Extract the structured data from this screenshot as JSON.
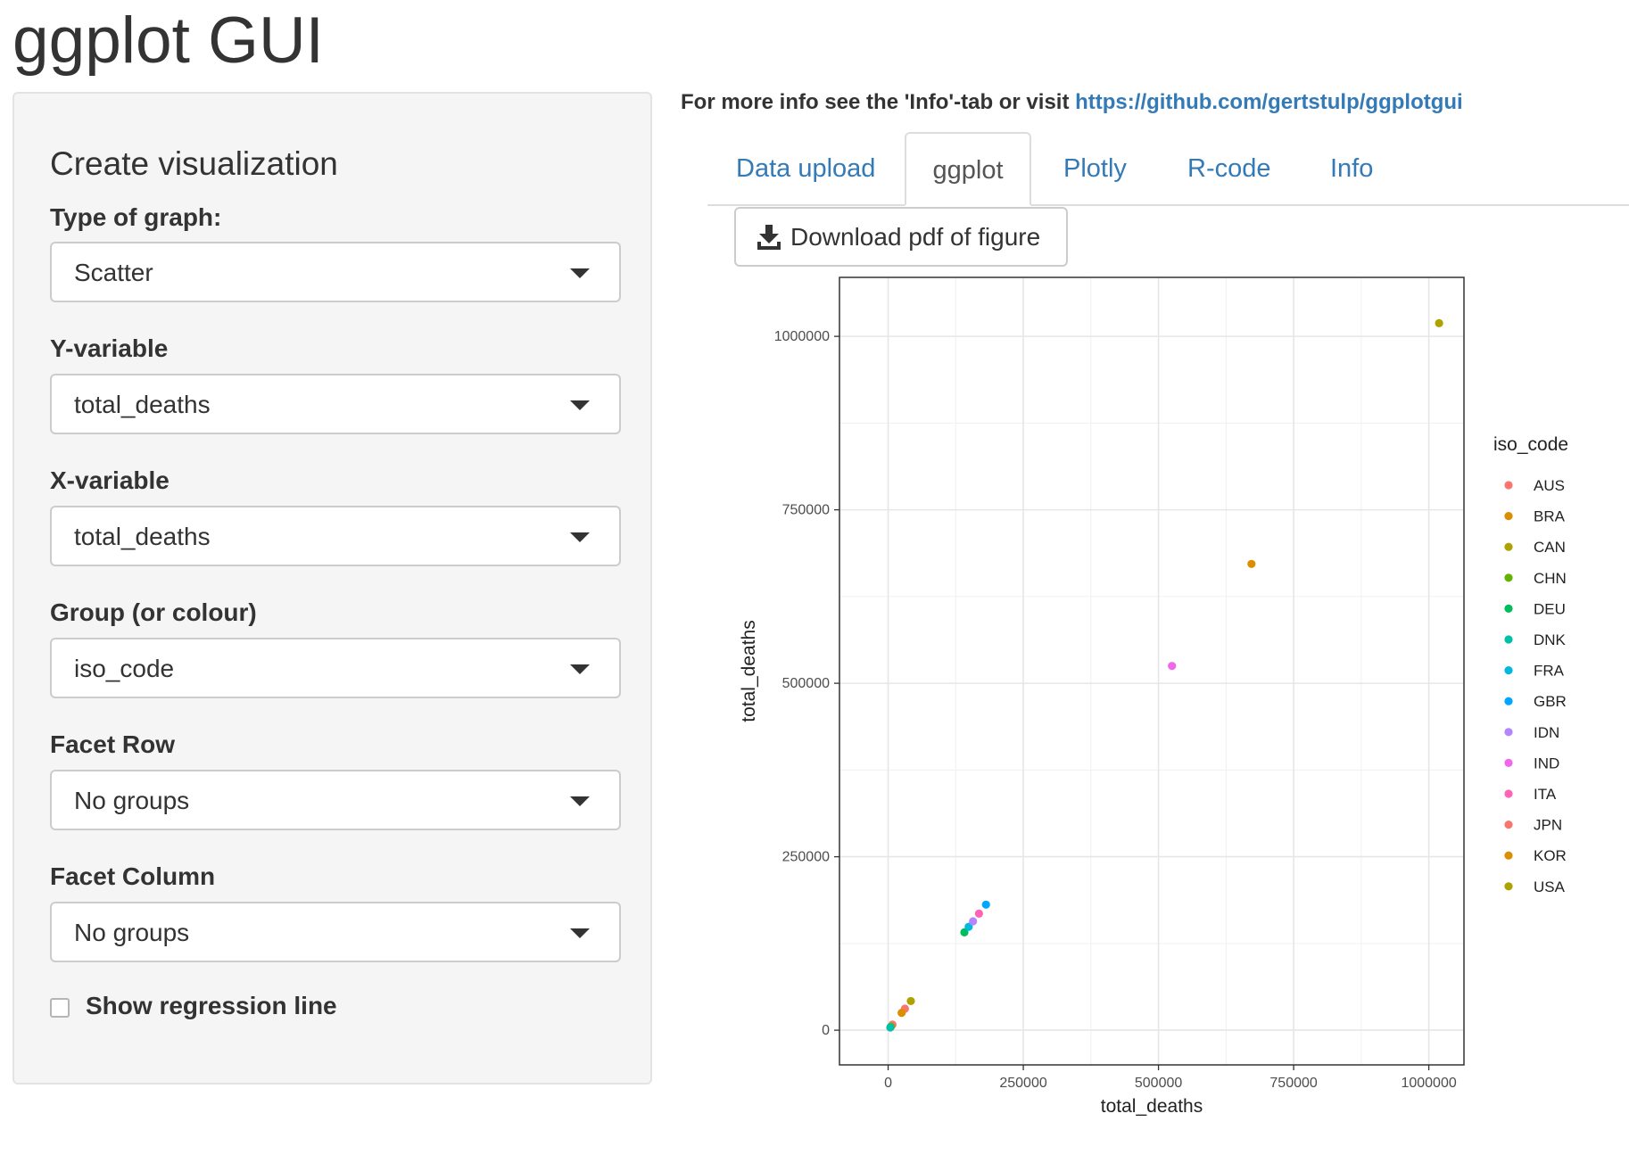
{
  "app": {
    "title": "ggplot GUI"
  },
  "sidebar": {
    "heading": "Create visualization",
    "controls": [
      {
        "label": "Type of graph:",
        "value": "Scatter"
      },
      {
        "label": "Y-variable",
        "value": "total_deaths"
      },
      {
        "label": "X-variable",
        "value": "total_deaths"
      },
      {
        "label": "Group (or colour)",
        "value": "iso_code"
      },
      {
        "label": "Facet Row",
        "value": "No groups"
      },
      {
        "label": "Facet Column",
        "value": "No groups"
      }
    ],
    "regression": {
      "label": "Show regression line",
      "checked": false
    }
  },
  "main": {
    "info_text": "For more info see the 'Info'-tab or visit ",
    "info_link": "https://github.com/gertstulp/ggplotgui",
    "tabs": [
      {
        "label": "Data upload",
        "active": false
      },
      {
        "label": "ggplot",
        "active": true
      },
      {
        "label": "Plotly",
        "active": false
      },
      {
        "label": "R-code",
        "active": false
      },
      {
        "label": "Info",
        "active": false
      }
    ],
    "download_label": "Download pdf of figure",
    "download_icon": "download-icon"
  },
  "chart_data": {
    "type": "scatter",
    "xlabel": "total_deaths",
    "ylabel": "total_deaths",
    "xlim": [
      -90000,
      1065000
    ],
    "ylim": [
      -50000,
      1085000
    ],
    "xticks": [
      0,
      250000,
      500000,
      750000,
      1000000
    ],
    "yticks": [
      0,
      250000,
      500000,
      750000,
      1000000
    ],
    "grid": true,
    "legend_title": "iso_code",
    "legend_position": "right",
    "series": [
      {
        "name": "AUS",
        "color": "#F8766D",
        "x": 8000,
        "y": 8000
      },
      {
        "name": "BRA",
        "color": "#DB8E00",
        "x": 672000,
        "y": 672000
      },
      {
        "name": "CAN",
        "color": "#AEA200",
        "x": 42000,
        "y": 42000
      },
      {
        "name": "CHN",
        "color": "#64B200",
        "x": 5000,
        "y": 5000
      },
      {
        "name": "DEU",
        "color": "#00BD5C",
        "x": 141000,
        "y": 141000
      },
      {
        "name": "DNK",
        "color": "#00C1A7",
        "x": 4000,
        "y": 4000
      },
      {
        "name": "FRA",
        "color": "#00BADE",
        "x": 149000,
        "y": 149000
      },
      {
        "name": "GBR",
        "color": "#00A6FF",
        "x": 181000,
        "y": 181000
      },
      {
        "name": "IDN",
        "color": "#B385FF",
        "x": 157000,
        "y": 157000
      },
      {
        "name": "IND",
        "color": "#EF67EB",
        "x": 525000,
        "y": 525000
      },
      {
        "name": "ITA",
        "color": "#FF63B6",
        "x": 168000,
        "y": 168000
      },
      {
        "name": "JPN",
        "color": "#F8766D",
        "x": 31000,
        "y": 31000
      },
      {
        "name": "KOR",
        "color": "#DB8E00",
        "x": 25000,
        "y": 25000
      },
      {
        "name": "USA",
        "color": "#AEA200",
        "x": 1019000,
        "y": 1019000
      }
    ]
  }
}
